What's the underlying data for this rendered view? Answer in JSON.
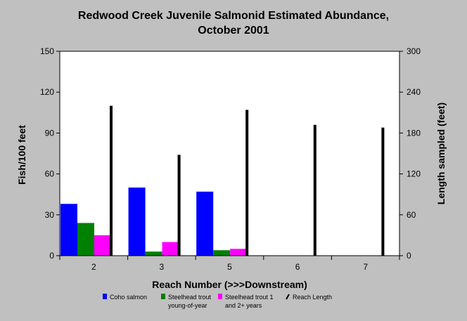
{
  "chart_data": {
    "type": "bar",
    "title": "Redwood Creek Juvenile Salmonid Estimated Abundance,",
    "subtitle": "October 2001",
    "xlabel": "Reach Number (>>>Downstream)",
    "ylabel": "Fish/100 feet",
    "y2label": "Length sampled (feet)",
    "categories": [
      "2",
      "3",
      "5",
      "6",
      "7"
    ],
    "ylim": [
      0,
      150
    ],
    "y2lim": [
      0,
      300
    ],
    "yticks": [
      "0",
      "30",
      "60",
      "90",
      "120",
      "150"
    ],
    "y2ticks": [
      "0",
      "60",
      "120",
      "180",
      "240",
      "300"
    ],
    "series": [
      {
        "name": "Coho salmon",
        "color": "#0000ff",
        "axis": "left",
        "values": [
          38,
          50,
          47,
          0,
          0
        ]
      },
      {
        "name": "Steelhead trout young-of-year",
        "legend_lines": [
          "Steelhead trout",
          "young-of-year"
        ],
        "color": "#008000",
        "axis": "left",
        "values": [
          24,
          3,
          4,
          0,
          0
        ]
      },
      {
        "name": "Steelhead trout 1 and 2+ years",
        "legend_lines": [
          "Steelhead trout 1",
          "and 2+ years"
        ],
        "color": "#ff00ff",
        "axis": "left",
        "values": [
          15,
          10,
          5,
          0,
          0
        ]
      },
      {
        "name": "Reach Length",
        "color": "#000000",
        "axis": "right",
        "style": "thin-bar",
        "values": [
          220,
          148,
          214,
          192,
          188
        ]
      }
    ],
    "legend_position": "bottom",
    "grid": false
  }
}
